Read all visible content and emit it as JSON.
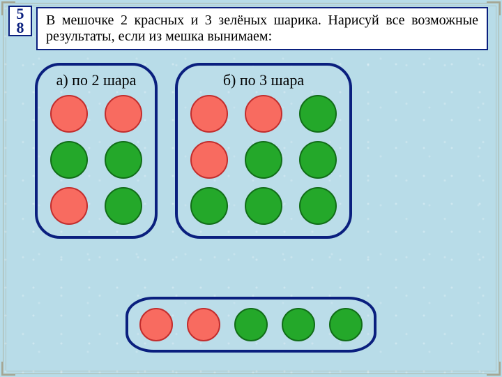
{
  "colors": {
    "border": "#0a1f7e",
    "background": "#b8dce8",
    "red_fill": "#f86b60",
    "red_stroke": "#c22d2d",
    "green_fill": "#24a82a",
    "green_stroke": "#116d18"
  },
  "badge": {
    "line1": "5",
    "line2": "8"
  },
  "task_text": "В мешочке 2 красных и 3 зелёных шарика. Нарисуй все возможные результаты, если из мешка вынимаем:",
  "panel_a": {
    "title": "а) по 2 шара",
    "ball_size": 54,
    "rows": [
      [
        "red",
        "red"
      ],
      [
        "green",
        "green"
      ],
      [
        "red",
        "green"
      ]
    ]
  },
  "panel_b": {
    "title": "б) по 3 шара",
    "ball_size": 54,
    "rows": [
      [
        "red",
        "red",
        "green"
      ],
      [
        "red",
        "green",
        "green"
      ],
      [
        "green",
        "green",
        "green"
      ]
    ]
  },
  "bag": {
    "ball_size": 48,
    "balls": [
      "red",
      "red",
      "green",
      "green",
      "green"
    ]
  }
}
